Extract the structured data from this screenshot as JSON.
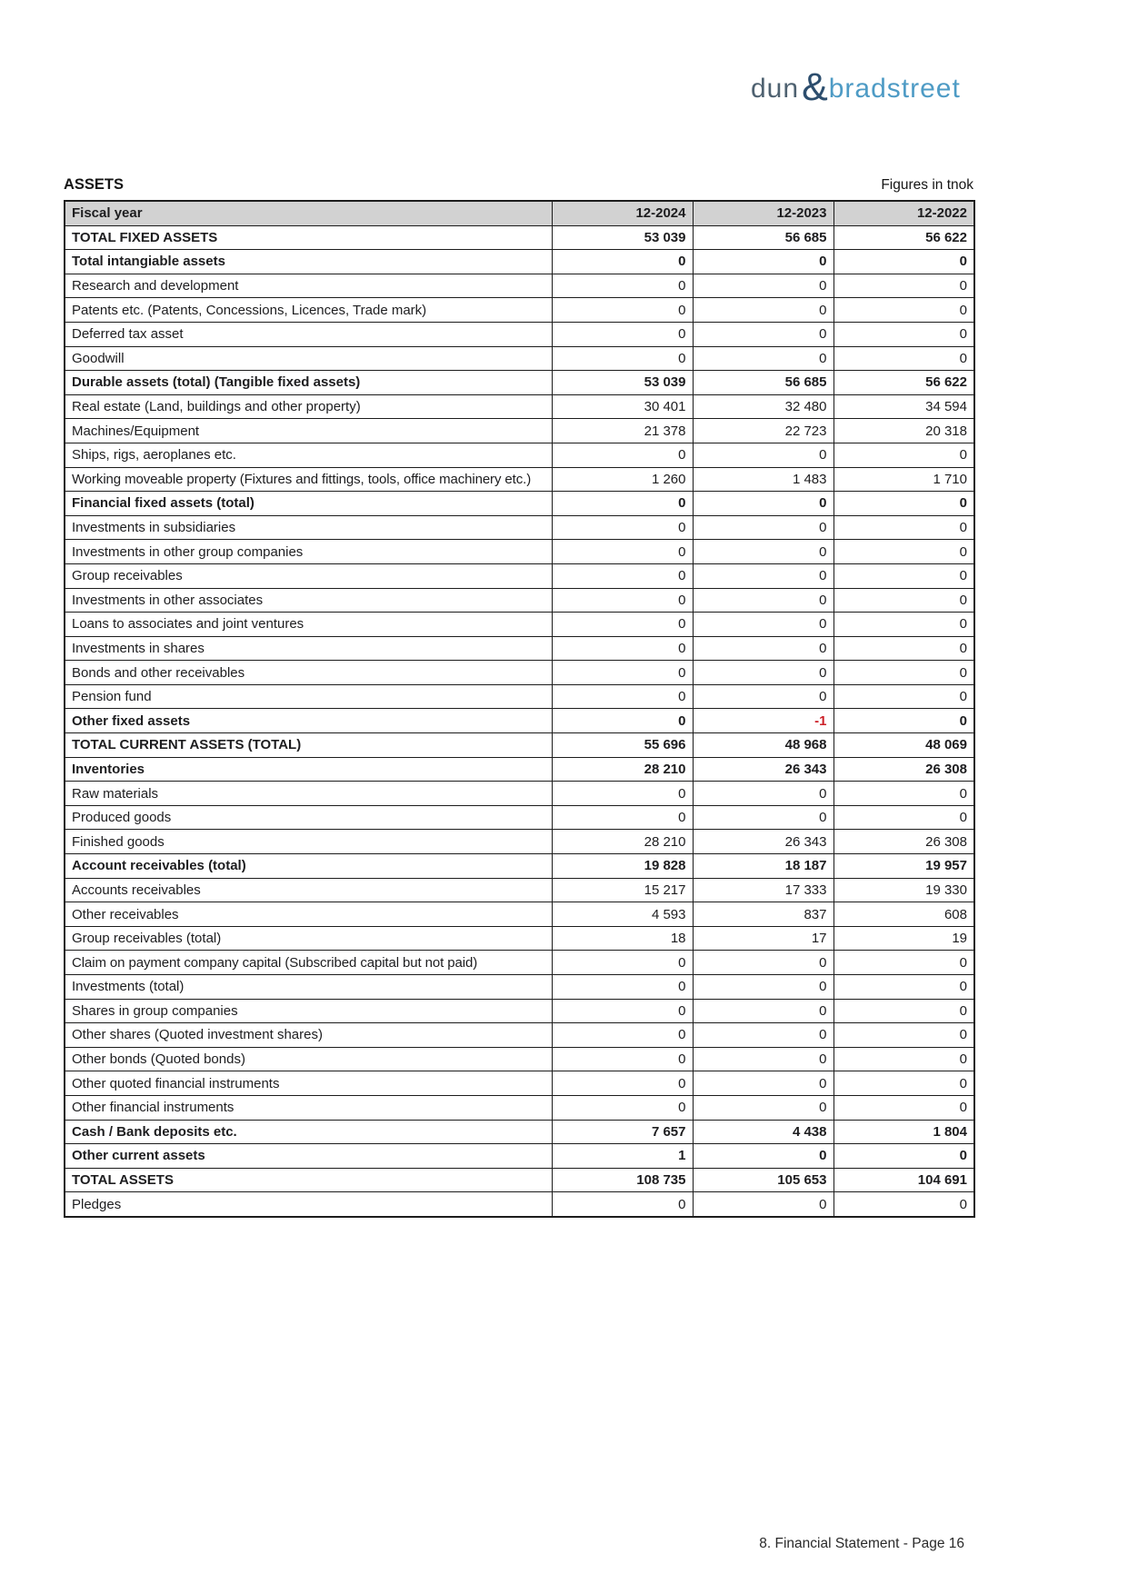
{
  "logo": {
    "part1": "dun",
    "ampersand": "&",
    "part2": "bradstreet"
  },
  "header": {
    "title": "ASSETS",
    "units_note": "Figures in tnok"
  },
  "colors": {
    "header_row_bg": "#d2d2d2",
    "negative_value": "#cc2128",
    "logo_dun": "#4e6170",
    "logo_ampersand": "#2d4e6e",
    "logo_bradstreet": "#4e9bc5"
  },
  "table": {
    "columns": [
      "Fiscal year",
      "12-2024",
      "12-2023",
      "12-2022"
    ],
    "rows": [
      {
        "label": "TOTAL FIXED ASSETS",
        "values": [
          "53 039",
          "56 685",
          "56 622"
        ],
        "style": "bold"
      },
      {
        "label": "Total intangiable assets",
        "values": [
          "0",
          "0",
          "0"
        ],
        "style": "bold"
      },
      {
        "label": "Research and development",
        "values": [
          "0",
          "0",
          "0"
        ]
      },
      {
        "label": "Patents etc. (Patents, Concessions, Licences, Trade mark)",
        "values": [
          "0",
          "0",
          "0"
        ]
      },
      {
        "label": "Deferred tax asset",
        "values": [
          "0",
          "0",
          "0"
        ]
      },
      {
        "label": "Goodwill",
        "values": [
          "0",
          "0",
          "0"
        ]
      },
      {
        "label": "Durable assets (total) (Tangible fixed assets)",
        "values": [
          "53 039",
          "56 685",
          "56 622"
        ],
        "style": "bold"
      },
      {
        "label": "Real estate (Land, buildings and other property)",
        "values": [
          "30 401",
          "32 480",
          "34 594"
        ]
      },
      {
        "label": "Machines/Equipment",
        "values": [
          "21 378",
          "22 723",
          "20 318"
        ]
      },
      {
        "label": "Ships, rigs, aeroplanes etc.",
        "values": [
          "0",
          "0",
          "0"
        ]
      },
      {
        "label": "Working moveable property (Fixtures and fittings, tools, office machinery etc.)",
        "values": [
          "1 260",
          "1 483",
          "1 710"
        ],
        "small": true
      },
      {
        "label": "Financial fixed assets (total)",
        "values": [
          "0",
          "0",
          "0"
        ],
        "style": "bold"
      },
      {
        "label": "Investments in subsidiaries",
        "values": [
          "0",
          "0",
          "0"
        ]
      },
      {
        "label": "Investments in other group companies",
        "values": [
          "0",
          "0",
          "0"
        ]
      },
      {
        "label": "Group receivables",
        "values": [
          "0",
          "0",
          "0"
        ]
      },
      {
        "label": "Investments in other associates",
        "values": [
          "0",
          "0",
          "0"
        ]
      },
      {
        "label": "Loans to associates and joint ventures",
        "values": [
          "0",
          "0",
          "0"
        ]
      },
      {
        "label": "Investments in shares",
        "values": [
          "0",
          "0",
          "0"
        ]
      },
      {
        "label": "Bonds and other receivables",
        "values": [
          "0",
          "0",
          "0"
        ]
      },
      {
        "label": "Pension fund",
        "values": [
          "0",
          "0",
          "0"
        ]
      },
      {
        "label": "Other fixed assets",
        "values": [
          "0",
          "-1",
          "0"
        ],
        "style": "bold"
      },
      {
        "label": "TOTAL CURRENT ASSETS (TOTAL)",
        "values": [
          "55 696",
          "48 968",
          "48 069"
        ],
        "style": "bold"
      },
      {
        "label": "Inventories",
        "values": [
          "28 210",
          "26 343",
          "26 308"
        ],
        "style": "bold"
      },
      {
        "label": "Raw materials",
        "values": [
          "0",
          "0",
          "0"
        ]
      },
      {
        "label": "Produced goods",
        "values": [
          "0",
          "0",
          "0"
        ]
      },
      {
        "label": "Finished goods",
        "values": [
          "28 210",
          "26 343",
          "26 308"
        ]
      },
      {
        "label": "Account receivables (total)",
        "values": [
          "19 828",
          "18 187",
          "19 957"
        ],
        "style": "bold"
      },
      {
        "label": "Accounts receivables",
        "values": [
          "15 217",
          "17 333",
          "19 330"
        ]
      },
      {
        "label": "Other receivables",
        "values": [
          "4 593",
          "837",
          "608"
        ]
      },
      {
        "label": "Group receivables (total)",
        "values": [
          "18",
          "17",
          "19"
        ]
      },
      {
        "label": "Claim on payment company capital (Subscribed capital but not paid)",
        "values": [
          "0",
          "0",
          "0"
        ],
        "small": true
      },
      {
        "label": "Investments (total)",
        "values": [
          "0",
          "0",
          "0"
        ]
      },
      {
        "label": "Shares in group companies",
        "values": [
          "0",
          "0",
          "0"
        ]
      },
      {
        "label": "Other shares (Quoted investment shares)",
        "values": [
          "0",
          "0",
          "0"
        ]
      },
      {
        "label": "Other bonds (Quoted bonds)",
        "values": [
          "0",
          "0",
          "0"
        ]
      },
      {
        "label": "Other quoted financial instruments",
        "values": [
          "0",
          "0",
          "0"
        ]
      },
      {
        "label": "Other financial instruments",
        "values": [
          "0",
          "0",
          "0"
        ]
      },
      {
        "label": "Cash / Bank deposits etc.",
        "values": [
          "7 657",
          "4 438",
          "1 804"
        ],
        "style": "bold"
      },
      {
        "label": "Other current assets",
        "values": [
          "1",
          "0",
          "0"
        ],
        "style": "bold"
      },
      {
        "label": "TOTAL ASSETS",
        "values": [
          "108 735",
          "105 653",
          "104 691"
        ],
        "style": "bold"
      },
      {
        "label": "Pledges",
        "values": [
          "0",
          "0",
          "0"
        ]
      }
    ]
  },
  "footer": {
    "text": "8. Financial Statement - Page 16"
  }
}
